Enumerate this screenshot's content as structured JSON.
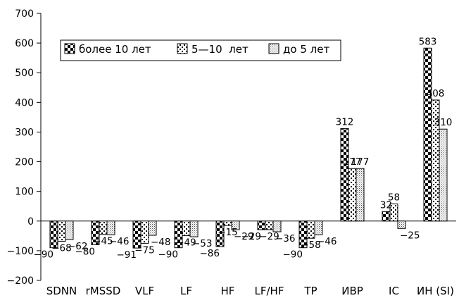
{
  "chart_data": {
    "type": "bar",
    "title": "",
    "xlabel": "",
    "ylabel": "",
    "ylim": [
      -200,
      700
    ],
    "yticks": [
      -200,
      -100,
      0,
      100,
      200,
      300,
      400,
      500,
      600,
      700
    ],
    "ytick_labels": [
      "−200",
      "−100",
      "0",
      "100",
      "200",
      "300",
      "400",
      "500",
      "600",
      "700"
    ],
    "grid": false,
    "legend_position": "top-left",
    "categories": [
      "SDNN",
      "rMSSD",
      "VLF",
      "LF",
      "HF",
      "LF/HF",
      "TP",
      "ИВР",
      "IC",
      "ИН (SI)"
    ],
    "series": [
      {
        "name": "более 10 лет",
        "pattern": "checker",
        "values": [
          -90,
          -80,
          -91,
          -90,
          -86,
          -29,
          -90,
          312,
          32,
          583
        ],
        "labels": [
          "−90",
          "−80",
          "−91",
          "−90",
          "−86",
          "−29",
          "−90",
          "312",
          "32",
          "583"
        ]
      },
      {
        "name": "5—10  лет",
        "pattern": "dots",
        "values": [
          -68,
          -45,
          -75,
          -49,
          -15,
          -29,
          -58,
          177,
          58,
          408
        ],
        "labels": [
          "−68",
          "−45",
          "−75",
          "−49",
          "−15",
          "−29",
          "−58",
          "177",
          "58",
          "408"
        ]
      },
      {
        "name": "до 5 лет",
        "pattern": "stipple",
        "values": [
          -62,
          -46,
          -48,
          -53,
          -29,
          -36,
          -46,
          177,
          -25,
          310
        ],
        "labels": [
          "−62",
          "−46",
          "−48",
          "−53",
          "−29",
          "−36",
          "−46",
          "177",
          "−25",
          "310"
        ]
      }
    ]
  },
  "colors": {
    "ink": "#000000",
    "background": "#ffffff"
  }
}
